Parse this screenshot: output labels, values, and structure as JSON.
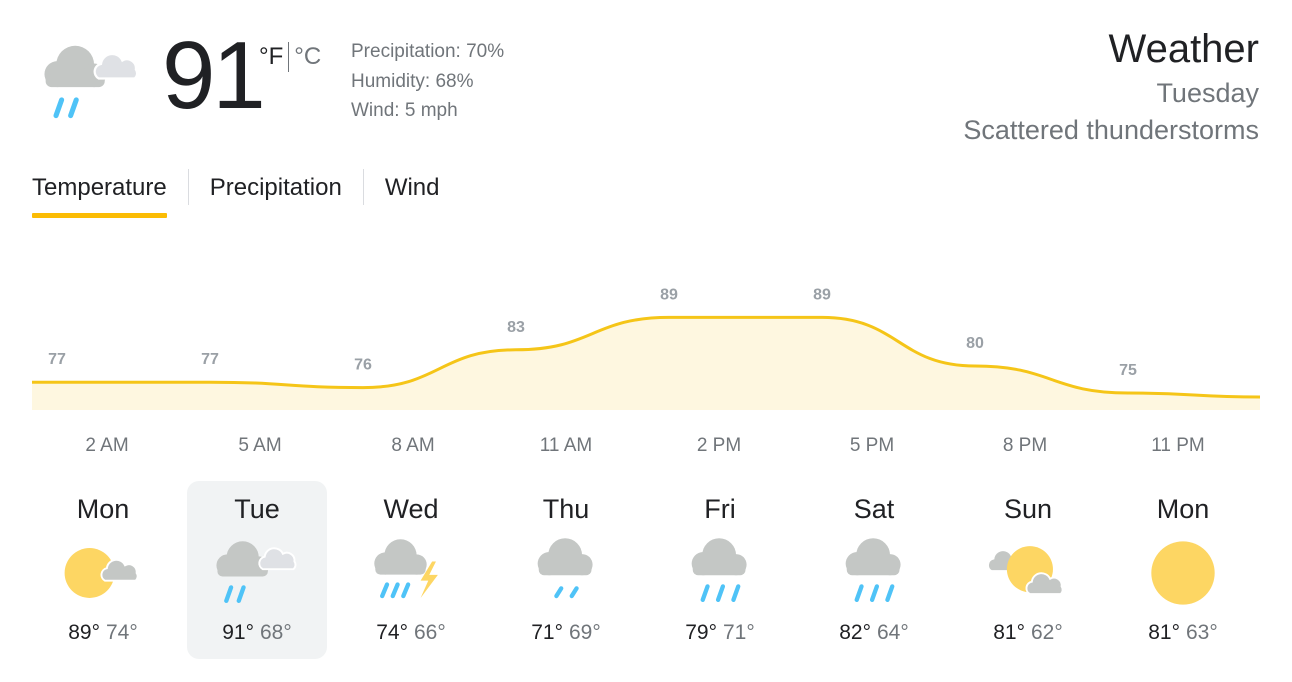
{
  "current": {
    "icon": "rain-cloudy-icon",
    "temperature": "91",
    "unit_f": "°F",
    "unit_c": "°C",
    "precipitation": "Precipitation: 70%",
    "humidity": "Humidity: 68%",
    "wind": "Wind: 5 mph"
  },
  "header": {
    "title": "Weather",
    "day": "Tuesday",
    "condition": "Scattered thunderstorms"
  },
  "tabs": [
    {
      "label": "Temperature",
      "active": true
    },
    {
      "label": "Precipitation",
      "active": false
    },
    {
      "label": "Wind",
      "active": false
    }
  ],
  "colors": {
    "accent": "#fbbc04",
    "chart_line": "#f5c518",
    "chart_fill": "#fef7e0",
    "sun": "#fdd663",
    "cloud": "#c4c7c5",
    "rain": "#4fc3f7",
    "selected_bg": "#f1f3f4"
  },
  "chart_data": {
    "type": "area",
    "x": [
      "2 AM",
      "5 AM",
      "8 AM",
      "11 AM",
      "2 PM",
      "5 PM",
      "8 PM",
      "11 PM"
    ],
    "values": [
      77,
      77,
      76,
      83,
      89,
      89,
      80,
      75
    ],
    "labels": [
      "77",
      "77",
      "76",
      "83",
      "89",
      "89",
      "80",
      "75"
    ],
    "ylim": [
      60,
      100
    ],
    "grid": false,
    "legend": "none"
  },
  "days": [
    {
      "name": "Mon",
      "icon": "partly-sunny-icon",
      "hi": "89°",
      "lo": "74°",
      "selected": false
    },
    {
      "name": "Tue",
      "icon": "rain-cloudy-icon",
      "hi": "91°",
      "lo": "68°",
      "selected": true
    },
    {
      "name": "Wed",
      "icon": "thunderstorm-icon",
      "hi": "74°",
      "lo": "66°",
      "selected": false
    },
    {
      "name": "Thu",
      "icon": "light-rain-icon",
      "hi": "71°",
      "lo": "69°",
      "selected": false
    },
    {
      "name": "Fri",
      "icon": "rain-icon",
      "hi": "79°",
      "lo": "71°",
      "selected": false
    },
    {
      "name": "Sat",
      "icon": "rain-icon",
      "hi": "82°",
      "lo": "64°",
      "selected": false
    },
    {
      "name": "Sun",
      "icon": "mostly-cloudy-sun-icon",
      "hi": "81°",
      "lo": "62°",
      "selected": false
    },
    {
      "name": "Mon",
      "icon": "sunny-icon",
      "hi": "81°",
      "lo": "63°",
      "selected": false
    }
  ]
}
